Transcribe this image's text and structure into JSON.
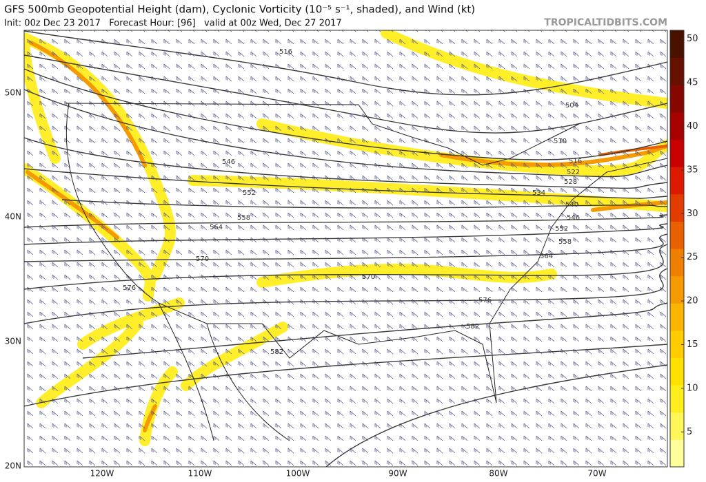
{
  "header": {
    "title": "GFS 500mb Geopotential Height (dam), Cyclonic Vorticity (10⁻⁵ s⁻¹, shaded), and Wind (kt)",
    "subtitle": "Init: 00z Dec 23 2017   Forecast Hour: [96]   valid at 00z Wed, Dec 27 2017",
    "site": "TROPICALTIDBITS.COM"
  },
  "map": {
    "lat_labels": [
      "50N",
      "40N",
      "30N",
      "20N"
    ],
    "lon_labels": [
      "120W",
      "110W",
      "100W",
      "90W",
      "80W",
      "70W"
    ],
    "contour_labels": [
      516,
      504,
      510,
      516,
      522,
      528,
      534,
      540,
      546,
      552,
      558,
      564,
      546,
      552,
      558,
      564,
      570,
      576,
      576,
      570,
      582,
      582
    ]
  },
  "colorbar": {
    "lim": [
      1,
      51
    ],
    "ticks": [
      5,
      10,
      15,
      20,
      25,
      30,
      35,
      40,
      45,
      50
    ],
    "colors": [
      "#ffff9a",
      "#fff65a",
      "#ffee1e",
      "#ffe100",
      "#ffcc00",
      "#fbb400",
      "#f59a00",
      "#ef7f00",
      "#e86000",
      "#e23c00",
      "#dc1a00",
      "#c80000",
      "#a60000",
      "#860600",
      "#661000",
      "#4a1000"
    ]
  }
}
